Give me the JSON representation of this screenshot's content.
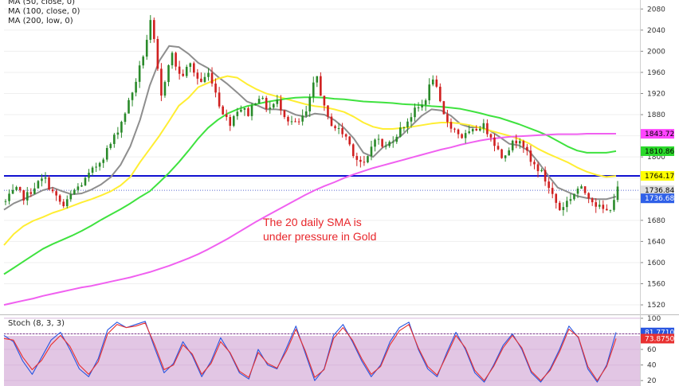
{
  "chart_data": [
    {
      "type": "line",
      "title": "",
      "legend": [
        {
          "label": "MA (50, close, 0)",
          "color": "#ffee33"
        },
        {
          "label": "MA (100, close, 0)",
          "color": "#3fe23f"
        },
        {
          "label": "MA (200, low, 0)",
          "color": "#f060f0"
        }
      ],
      "y_ticks": [
        2080,
        2040,
        2000,
        1960,
        1920,
        1880,
        1840,
        1800,
        1760,
        1720,
        1680,
        1640,
        1600,
        1560,
        1520
      ],
      "ylim": [
        1502,
        2097
      ],
      "price_path": [
        1715,
        1738,
        1722,
        1745,
        1760,
        1728,
        1705,
        1735,
        1752,
        1775,
        1800,
        1830,
        1870,
        1920,
        1980,
        2060,
        1910,
        2000,
        1950,
        1975,
        1940,
        1960,
        1900,
        1862,
        1895,
        1882,
        1918,
        1890,
        1905,
        1872,
        1860,
        1885,
        1957,
        1875,
        1855,
        1840,
        1800,
        1782,
        1840,
        1815,
        1838,
        1860,
        1885,
        1900,
        1952,
        1880,
        1855,
        1838,
        1845,
        1862,
        1840,
        1800,
        1822,
        1838,
        1790,
        1775,
        1740,
        1700,
        1720,
        1742,
        1728,
        1705,
        1695,
        1738
      ],
      "series": [
        {
          "name": "",
          "color": "#8e8e8e",
          "values": [
            1700,
            1712,
            1720,
            1728,
            1737,
            1742,
            1735,
            1729,
            1731,
            1738,
            1748,
            1762,
            1785,
            1820,
            1870,
            1935,
            1982,
            2010,
            2008,
            1995,
            1978,
            1968,
            1952,
            1938,
            1922,
            1905,
            1898,
            1890,
            1890,
            1888,
            1880,
            1876,
            1882,
            1880,
            1870,
            1855,
            1835,
            1808,
            1800,
            1818,
            1828,
            1842,
            1860,
            1878,
            1890,
            1888,
            1878,
            1862,
            1856,
            1856,
            1850,
            1838,
            1825,
            1822,
            1812,
            1790,
            1765,
            1742,
            1734,
            1726,
            1722,
            1720,
            1720,
            1725
          ]
        },
        {
          "name": "",
          "color": "#ffee33",
          "values": [
            1633,
            1654,
            1669,
            1679,
            1686,
            1694,
            1700,
            1707,
            1714,
            1720,
            1727,
            1735,
            1746,
            1762,
            1790,
            1815,
            1840,
            1868,
            1897,
            1912,
            1932,
            1940,
            1948,
            1953,
            1950,
            1938,
            1928,
            1920,
            1915,
            1910,
            1905,
            1900,
            1896,
            1894,
            1890,
            1885,
            1876,
            1865,
            1857,
            1853,
            1853,
            1855,
            1857,
            1860,
            1863,
            1865,
            1865,
            1863,
            1860,
            1855,
            1850,
            1845,
            1840,
            1834,
            1826,
            1815,
            1806,
            1798,
            1790,
            1780,
            1772,
            1766,
            1762,
            1764
          ]
        },
        {
          "name": "",
          "color": "#3fe23f",
          "values": [
            1578,
            1590,
            1602,
            1614,
            1626,
            1635,
            1643,
            1651,
            1660,
            1670,
            1681,
            1691,
            1701,
            1712,
            1724,
            1735,
            1752,
            1770,
            1790,
            1812,
            1835,
            1855,
            1870,
            1882,
            1890,
            1896,
            1900,
            1904,
            1907,
            1910,
            1912,
            1913,
            1913,
            1912,
            1910,
            1909,
            1907,
            1905,
            1904,
            1903,
            1902,
            1900,
            1899,
            1898,
            1896,
            1895,
            1893,
            1891,
            1887,
            1883,
            1878,
            1874,
            1868,
            1862,
            1855,
            1848,
            1840,
            1830,
            1820,
            1812,
            1808,
            1808,
            1808,
            1811
          ]
        },
        {
          "name": "",
          "color": "#f060f0",
          "values": [
            1520,
            1524,
            1528,
            1532,
            1537,
            1541,
            1545,
            1549,
            1553,
            1556,
            1560,
            1564,
            1568,
            1572,
            1577,
            1582,
            1588,
            1594,
            1601,
            1608,
            1616,
            1625,
            1635,
            1645,
            1656,
            1667,
            1678,
            1688,
            1698,
            1708,
            1718,
            1728,
            1737,
            1745,
            1752,
            1760,
            1767,
            1773,
            1779,
            1784,
            1789,
            1794,
            1799,
            1804,
            1809,
            1814,
            1818,
            1823,
            1827,
            1831,
            1834,
            1836,
            1838,
            1839,
            1840,
            1841,
            1842,
            1843,
            1843,
            1843,
            1844,
            1844,
            1844,
            1844
          ]
        }
      ],
      "horizontal_lines": [
        {
          "value": 1764.17,
          "color": "#1010d0",
          "style": "solid"
        },
        {
          "value": 1736.84,
          "color": "#5a6ad0",
          "style": "dotted"
        }
      ],
      "price_badges": [
        {
          "label": "1843.72",
          "value": 1843.72,
          "bg": "#ff44ff",
          "fg": "#000000"
        },
        {
          "label": "1810.86",
          "value": 1810.86,
          "bg": "#2bd92b",
          "fg": "#000000"
        },
        {
          "label": "1764.17",
          "value": 1764.17,
          "bg": "#ffff00",
          "fg": "#000000"
        },
        {
          "label": "1736.84",
          "value": 1736.84,
          "bg": "#dddddd",
          "fg": "#000000"
        },
        {
          "label": "1736.68",
          "value": 1736.68,
          "bg": "#2f60e8",
          "fg": "#ffffff"
        }
      ],
      "annotation": {
        "lines": [
          "The 20 daily SMA is",
          "under pressure in Gold"
        ]
      },
      "legend_placement": "top-left"
    },
    {
      "type": "line",
      "title": "Stoch (8, 3, 3)",
      "y_ticks": [
        100.0,
        80.0,
        60.0,
        40.0,
        20.0
      ],
      "ylim": [
        13,
        104
      ],
      "overbought": 80,
      "series": [
        {
          "name": "",
          "color": "#2855e0",
          "values": [
            78,
            70,
            45,
            28,
            50,
            72,
            82,
            60,
            35,
            25,
            48,
            85,
            95,
            88,
            92,
            96,
            62,
            30,
            42,
            70,
            52,
            25,
            45,
            75,
            55,
            30,
            22,
            60,
            40,
            35,
            62,
            90,
            55,
            20,
            35,
            78,
            92,
            70,
            45,
            25,
            40,
            70,
            88,
            95,
            60,
            35,
            25,
            55,
            82,
            60,
            30,
            18,
            40,
            65,
            80,
            60,
            30,
            18,
            35,
            60,
            90,
            75,
            35,
            18,
            40,
            82
          ]
        },
        {
          "name": "",
          "color": "#e83030",
          "values": [
            74,
            72,
            50,
            34,
            46,
            66,
            78,
            64,
            40,
            28,
            44,
            80,
            92,
            88,
            90,
            94,
            66,
            34,
            40,
            66,
            54,
            28,
            42,
            70,
            56,
            32,
            24,
            56,
            42,
            36,
            58,
            86,
            58,
            24,
            34,
            74,
            88,
            72,
            48,
            28,
            38,
            66,
            84,
            92,
            62,
            38,
            27,
            52,
            78,
            62,
            33,
            20,
            38,
            62,
            78,
            62,
            32,
            20,
            33,
            57,
            86,
            76,
            38,
            20,
            38,
            74
          ]
        }
      ],
      "price_badges": [
        {
          "label": "81.7710",
          "value": 81.771,
          "bg": "#2855e0",
          "fg": "#ffffff"
        },
        {
          "label": "73.8750",
          "value": 73.875,
          "bg": "#e83030",
          "fg": "#ffffff"
        }
      ]
    }
  ]
}
